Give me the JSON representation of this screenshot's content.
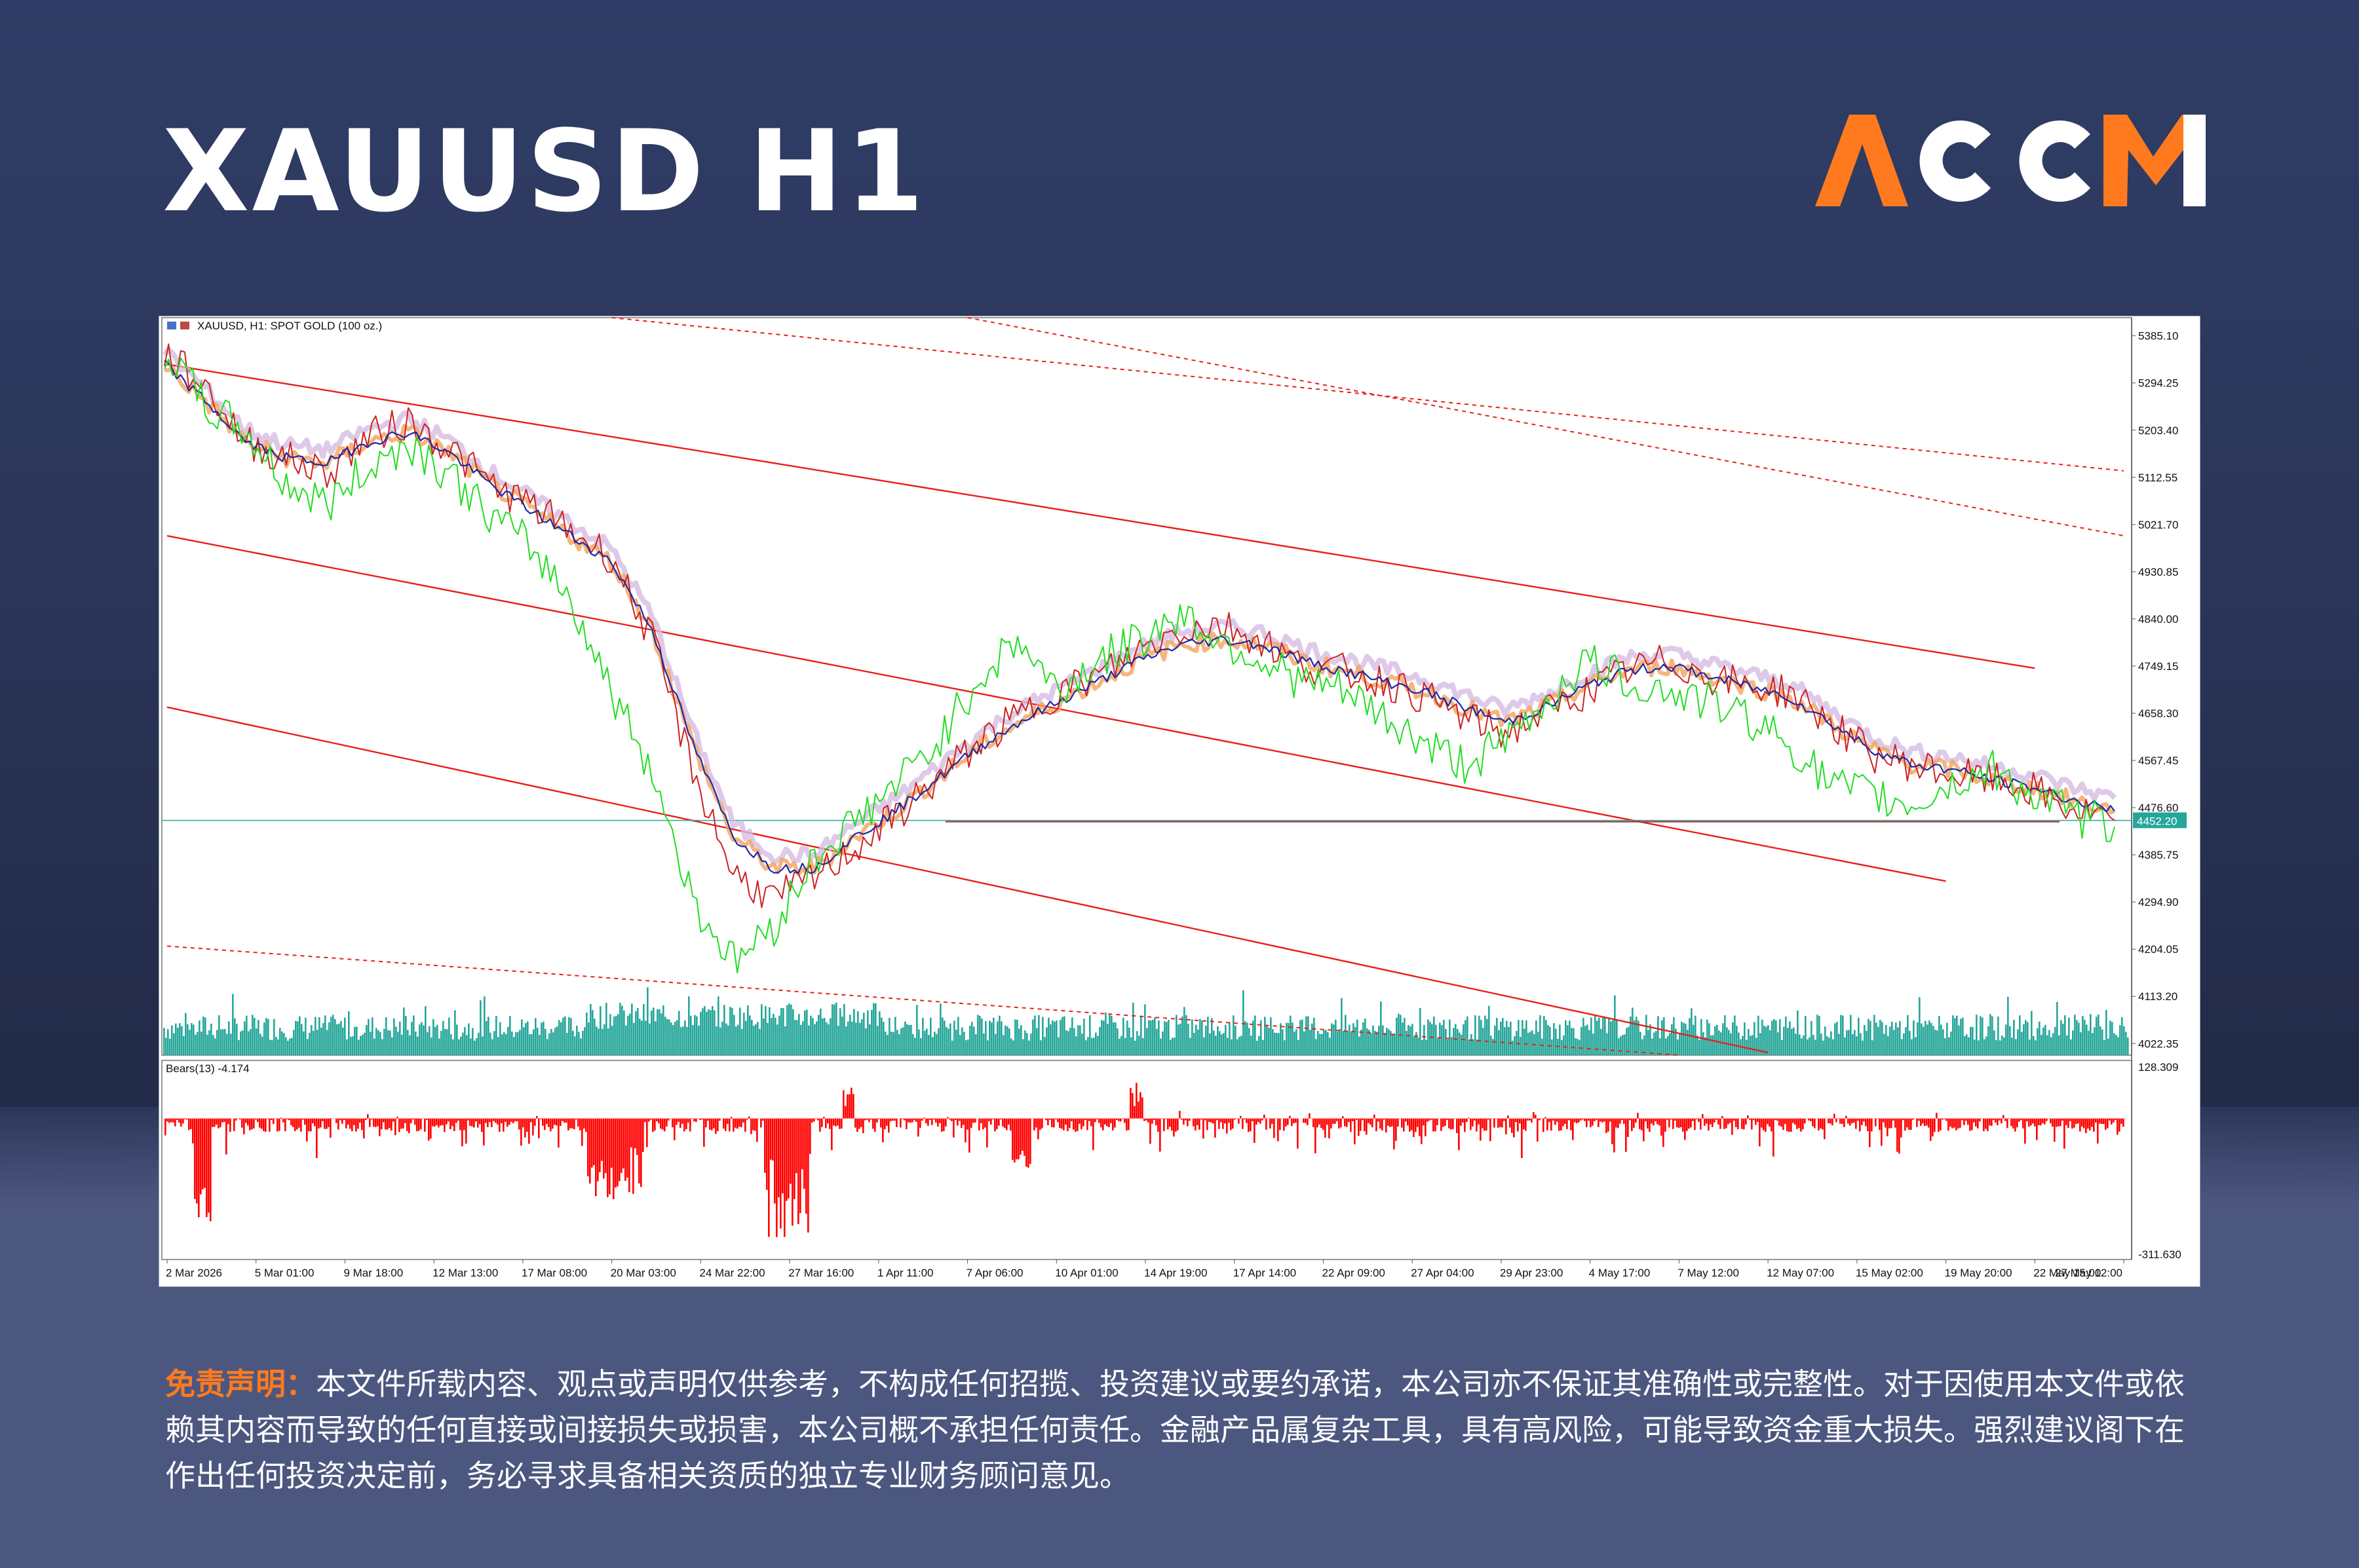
{
  "header": {
    "title": "XAUUSD H1",
    "logo_text": "ACCM"
  },
  "colors": {
    "accent_orange": "#ff7a1e",
    "bg_navy": "#2b3558",
    "volume_teal": "#26a69a",
    "channel_red": "#e8201b",
    "price_marker": "#26a69a"
  },
  "chart_data": [
    {
      "type": "line",
      "symbol_label": "XAUUSD, H1:  SPOT GOLD (100 oz.)",
      "ylim": [
        4000,
        5420
      ],
      "y_ticks": [
        "5385.10",
        "5294.25",
        "5203.40",
        "5112.55",
        "5021.70",
        "4930.85",
        "4840.00",
        "4749.15",
        "4658.30",
        "4567.45",
        "4476.60",
        "4385.75",
        "4294.90",
        "4204.05",
        "4113.20",
        "4022.35"
      ],
      "x_ticks": [
        "2 Mar 2026",
        "5 Mar 01:00",
        "9 Mar 18:00",
        "12 Mar 13:00",
        "17 Mar 08:00",
        "20 Mar 03:00",
        "24 Mar 22:00",
        "27 Mar 16:00",
        "1 Apr 11:00",
        "7 Apr 06:00",
        "10 Apr 01:00",
        "14 Apr 19:00",
        "17 Apr 14:00",
        "22 Apr 09:00",
        "27 Apr 04:00",
        "29 Apr 23:00",
        "4 May 17:00",
        "7 May 12:00",
        "12 May 07:00",
        "15 May 02:00",
        "19 May 20:00",
        "22 May 15:00",
        "27 May 12:00"
      ],
      "current_price": "4452.20",
      "horizontal_level": 4452,
      "series": [
        {
          "values": [
            5350,
            5290,
            5180,
            5150,
            5120,
            5190,
            5220,
            5170,
            5100,
            5060,
            5010,
            4960,
            4800,
            4550,
            4350,
            4300,
            4340,
            4400,
            4460,
            4530,
            4600,
            4650,
            4700,
            4730,
            4780,
            4820,
            4830,
            4800,
            4750,
            4740,
            4720,
            4690,
            4650,
            4620,
            4660,
            4700,
            4740,
            4760,
            4730,
            4710,
            4700,
            4640,
            4580,
            4560,
            4540,
            4530,
            4510,
            4470,
            4452
          ]
        },
        {
          "values": [
            5330,
            5260,
            5180,
            5150,
            5140,
            5180,
            5200,
            5160,
            5100,
            5050,
            5000,
            4950,
            4820,
            4600,
            4420,
            4360,
            4360,
            4420,
            4470,
            4530,
            4590,
            4640,
            4680,
            4720,
            4760,
            4790,
            4800,
            4790,
            4760,
            4740,
            4720,
            4700,
            4670,
            4640,
            4670,
            4710,
            4740,
            4750,
            4730,
            4710,
            4690,
            4640,
            4590,
            4560,
            4550,
            4530,
            4515,
            4490,
            4470
          ]
        },
        {
          "values": [
            5360,
            5250,
            5200,
            5100,
            5060,
            5130,
            5180,
            5120,
            5040,
            4980,
            4880,
            4700,
            4550,
            4300,
            4180,
            4250,
            4380,
            4450,
            4520,
            4600,
            4720,
            4800,
            4700,
            4760,
            4800,
            4850,
            4800,
            4760,
            4720,
            4700,
            4650,
            4600,
            4560,
            4600,
            4680,
            4760,
            4720,
            4700,
            4680,
            4650,
            4600,
            4520,
            4500,
            4480,
            4520,
            4550,
            4500,
            4460,
            4440
          ]
        }
      ],
      "channels": [
        {
          "style": "solid",
          "start": [
            "2 Mar 2026",
            5330
          ],
          "end": [
            "22 May 15:00",
            4745
          ]
        },
        {
          "style": "solid",
          "start": [
            "2 Mar 2026",
            5000
          ],
          "end": [
            "19 May 20:00",
            4335
          ]
        },
        {
          "style": "solid",
          "start": [
            "2 Mar 2026",
            4670
          ],
          "end": [
            "12 May 07:00",
            4005
          ]
        },
        {
          "style": "dashed",
          "start": [
            "20 Mar 03:00",
            5420
          ],
          "end": [
            "27 May 12:00",
            5125
          ]
        },
        {
          "style": "dashed",
          "start": [
            "7 Apr 06:00",
            5420
          ],
          "end": [
            "27 May 12:00",
            5000
          ]
        },
        {
          "style": "dashed",
          "start": [
            "2 Mar 2026",
            4210
          ],
          "end": [
            "7 May 12:00",
            4000
          ]
        }
      ]
    },
    {
      "type": "bar",
      "indicator_label": "Bears(13) -4.174",
      "ylim": [
        -311.63,
        128.309
      ],
      "y_ticks": [
        "128.309",
        "-311.630"
      ]
    }
  ],
  "disclaimer": {
    "label": "免责声明：",
    "text": "本文件所载内容、观点或声明仅供参考，不构成任何招揽、投资建议或要约承诺，本公司亦不保证其准确性或完整性。对于因使用本文件或依赖其内容而导致的任何直接或间接损失或损害，本公司概不承担任何责任。金融产品属复杂工具，具有高风险，可能导致资金重大损失。强烈建议阁下在作出任何投资决定前，务必寻求具备相关资质的独立专业财务顾问意见。"
  }
}
